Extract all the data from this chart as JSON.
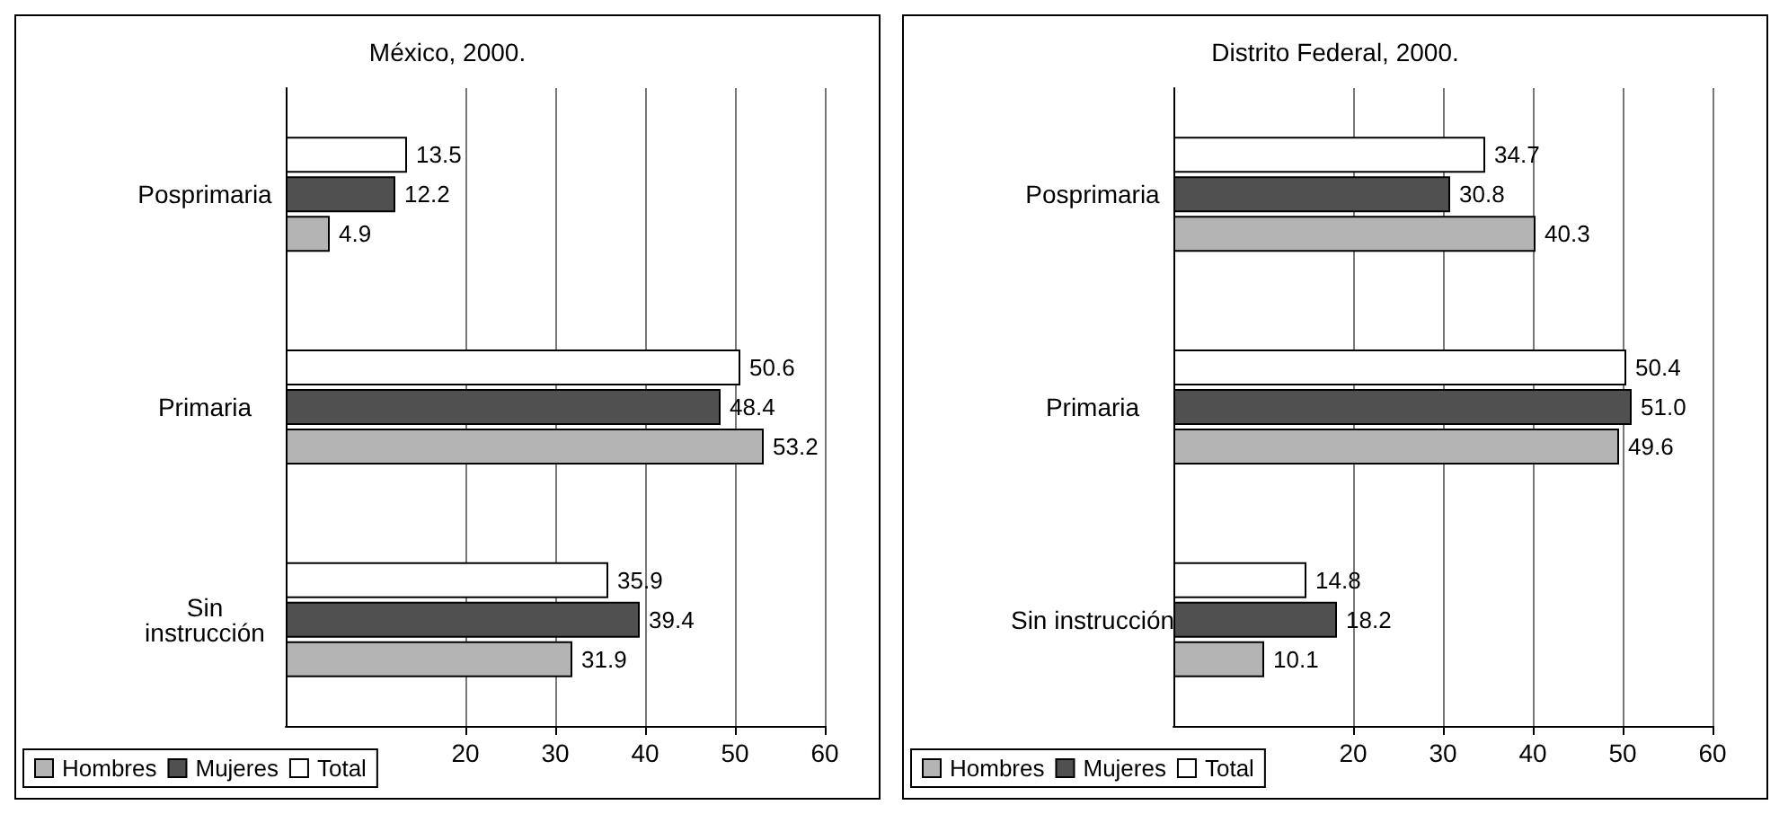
{
  "chart_data": [
    {
      "type": "bar",
      "orientation": "horizontal",
      "title": "México, 2000.",
      "categories": [
        "Posprimaria",
        "Primaria",
        "Sin\ninstrucción"
      ],
      "series": [
        {
          "name": "Hombres",
          "color": "#b4b4b4",
          "values": [
            4.9,
            53.2,
            31.9
          ],
          "value_labels": [
            "4.9",
            "53.2",
            "31.9"
          ]
        },
        {
          "name": "Mujeres",
          "color": "#505050",
          "values": [
            12.2,
            48.4,
            39.4
          ],
          "value_labels": [
            "12.2",
            "48.4",
            "39.4"
          ]
        },
        {
          "name": "Total",
          "color": "#ffffff",
          "values": [
            13.5,
            50.6,
            35.9
          ],
          "value_labels": [
            "13.5",
            "50.6",
            "35.9"
          ]
        }
      ],
      "xlim": [
        0,
        60
      ],
      "xticks": [
        20,
        30,
        40,
        50,
        60
      ],
      "grid": "x",
      "legend": "bottom left"
    },
    {
      "type": "bar",
      "orientation": "horizontal",
      "title": "Distrito Federal, 2000.",
      "categories": [
        "Posprimaria",
        "Primaria",
        "Sin instrucción"
      ],
      "series": [
        {
          "name": "Hombres",
          "color": "#b4b4b4",
          "values": [
            40.3,
            49.6,
            10.1
          ],
          "value_labels": [
            "40.3",
            "49.6",
            "10.1"
          ]
        },
        {
          "name": "Mujeres",
          "color": "#505050",
          "values": [
            30.8,
            51.0,
            18.2
          ],
          "value_labels": [
            "30.8",
            "51.0",
            "18.2"
          ]
        },
        {
          "name": "Total",
          "color": "#ffffff",
          "values": [
            34.7,
            50.4,
            14.8
          ],
          "value_labels": [
            "34.7",
            "50.4",
            "14.8"
          ]
        }
      ],
      "xlim": [
        0,
        60
      ],
      "xticks": [
        20,
        30,
        40,
        50,
        60
      ],
      "grid": "x",
      "legend": "bottom left"
    }
  ]
}
